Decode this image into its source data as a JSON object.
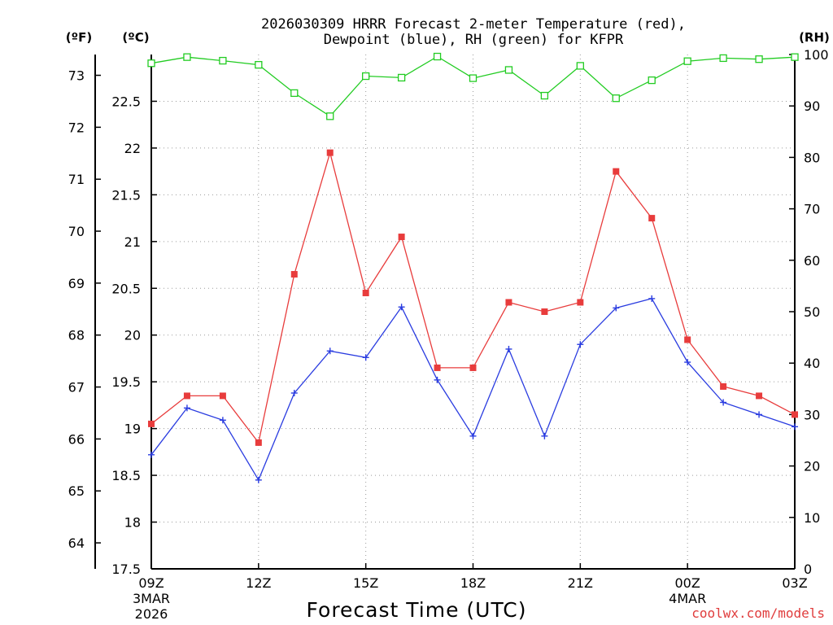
{
  "chart_data": {
    "type": "line",
    "title_line1": "2026030309 HRRR Forecast 2-meter Temperature (red),",
    "title_line2": "Dewpoint (blue), RH (green) for KFPR",
    "axis_units": {
      "fahrenheit": "(ºF)",
      "celsius": "(ºC)",
      "rh": "(RH)"
    },
    "xlabel": "Forecast Time (UTC)",
    "credit": "coolwx.com/models",
    "x_hours": [
      0,
      1,
      2,
      3,
      4,
      5,
      6,
      7,
      8,
      9,
      10,
      11,
      12,
      13,
      14,
      15,
      16,
      17,
      18
    ],
    "x_ticks": [
      {
        "hour": 0,
        "label": "09Z",
        "sub1": "3MAR",
        "sub2": "2026"
      },
      {
        "hour": 3,
        "label": "12Z",
        "sub1": "",
        "sub2": ""
      },
      {
        "hour": 6,
        "label": "15Z",
        "sub1": "",
        "sub2": ""
      },
      {
        "hour": 9,
        "label": "18Z",
        "sub1": "",
        "sub2": ""
      },
      {
        "hour": 12,
        "label": "21Z",
        "sub1": "",
        "sub2": ""
      },
      {
        "hour": 15,
        "label": "00Z",
        "sub1": "4MAR",
        "sub2": ""
      },
      {
        "hour": 18,
        "label": "03Z",
        "sub1": "",
        "sub2": ""
      }
    ],
    "celsius_ticks": [
      "17.5",
      "18",
      "18.5",
      "19",
      "19.5",
      "20",
      "20.5",
      "21",
      "21.5",
      "22",
      "22.5"
    ],
    "fahrenheit_ticks": [
      "64",
      "65",
      "66",
      "67",
      "68",
      "69",
      "70",
      "71",
      "72",
      "73"
    ],
    "rh_ticks": [
      "0",
      "10",
      "20",
      "30",
      "40",
      "50",
      "60",
      "70",
      "80",
      "90",
      "100"
    ],
    "ylim_celsius": [
      17.5,
      23.0
    ],
    "ylim_rh": [
      0,
      100
    ],
    "series": [
      {
        "name": "Temperature",
        "units": "C",
        "color": "#e83c3c",
        "marker": "square",
        "values": [
          19.05,
          19.35,
          19.35,
          18.85,
          20.65,
          21.95,
          20.45,
          21.05,
          19.65,
          19.65,
          20.35,
          20.25,
          20.35,
          21.75,
          21.25,
          19.95,
          19.45,
          19.35,
          19.15
        ]
      },
      {
        "name": "Dewpoint",
        "units": "C",
        "color": "#2a3ce0",
        "marker": "plus",
        "values": [
          18.72,
          19.22,
          19.09,
          18.45,
          19.38,
          19.83,
          19.76,
          20.3,
          19.52,
          18.92,
          19.85,
          18.92,
          19.9,
          20.29,
          20.39,
          19.71,
          19.28,
          19.15,
          19.02
        ]
      },
      {
        "name": "RH",
        "units": "%",
        "color": "#22cc22",
        "marker": "open-square",
        "values": [
          98.3,
          99.5,
          98.8,
          98.0,
          92.5,
          88.0,
          95.8,
          95.5,
          99.6,
          95.4,
          97.0,
          92.0,
          97.8,
          91.5,
          95.0,
          98.7,
          99.3,
          99.1,
          99.5
        ]
      }
    ]
  }
}
